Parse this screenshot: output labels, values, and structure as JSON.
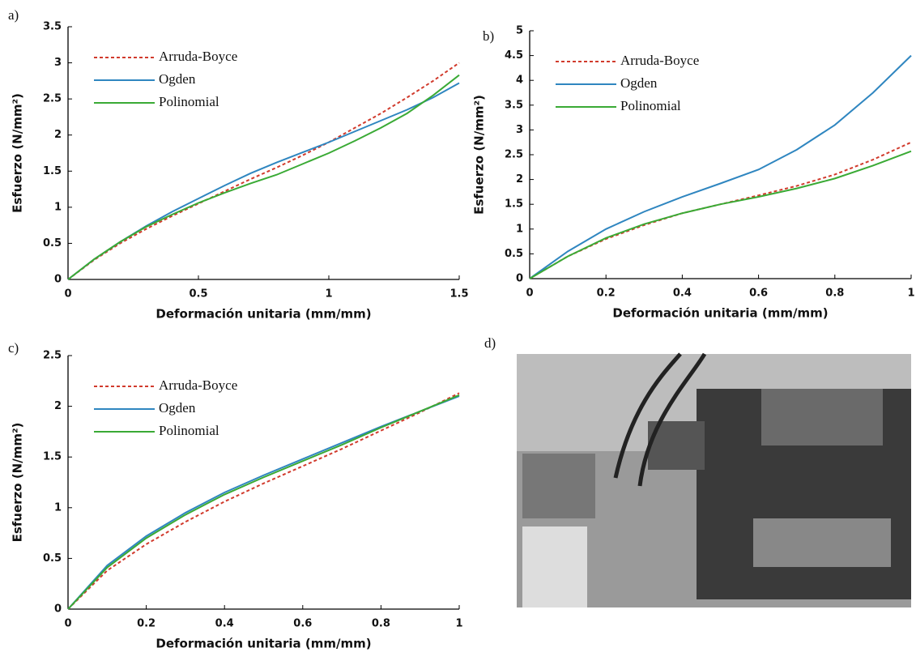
{
  "chart_data": [
    {
      "type": "line",
      "panel": "a)",
      "ylabel": "Esfuerzo (N/mm²)",
      "xlabel": "Deformación unitaria (mm/mm)",
      "xlim": [
        0,
        1.5
      ],
      "xticks": [
        0,
        0.5,
        1,
        1.5
      ],
      "ylim": [
        0,
        3.5
      ],
      "yticks": [
        0,
        0.5,
        1,
        1.5,
        2,
        2.5,
        3,
        3.5
      ],
      "legend": "upper left",
      "x": [
        0,
        0.1,
        0.2,
        0.3,
        0.4,
        0.5,
        0.6,
        0.7,
        0.8,
        0.9,
        1.0,
        1.1,
        1.2,
        1.3,
        1.4,
        1.5
      ],
      "series": [
        {
          "name": "Arruda-Boyce",
          "color": "#d13a2c",
          "style": "dotted",
          "values": [
            0,
            0.27,
            0.5,
            0.7,
            0.88,
            1.05,
            1.22,
            1.39,
            1.55,
            1.72,
            1.9,
            2.1,
            2.3,
            2.52,
            2.75,
            3.0
          ]
        },
        {
          "name": "Ogden",
          "color": "#2f86c0",
          "style": "solid",
          "values": [
            0,
            0.28,
            0.52,
            0.74,
            0.94,
            1.12,
            1.3,
            1.47,
            1.62,
            1.76,
            1.9,
            2.05,
            2.2,
            2.35,
            2.52,
            2.72
          ]
        },
        {
          "name": "Polinomial",
          "color": "#3aaa35",
          "style": "solid",
          "values": [
            0,
            0.28,
            0.52,
            0.73,
            0.9,
            1.06,
            1.2,
            1.33,
            1.45,
            1.6,
            1.75,
            1.92,
            2.1,
            2.3,
            2.55,
            2.83
          ]
        }
      ]
    },
    {
      "type": "line",
      "panel": "b)",
      "ylabel": "Esfuerzo (N/mm²)",
      "xlabel": "Deformación unitaria (mm/mm)",
      "xlim": [
        0,
        1
      ],
      "xticks": [
        0,
        0.2,
        0.4,
        0.6,
        0.8,
        1
      ],
      "ylim": [
        0,
        5
      ],
      "yticks": [
        0,
        0.5,
        1,
        1.5,
        2,
        2.5,
        3,
        3.5,
        4,
        4.5,
        5
      ],
      "legend": "upper left",
      "x": [
        0,
        0.1,
        0.2,
        0.3,
        0.4,
        0.5,
        0.6,
        0.7,
        0.8,
        0.9,
        1.0
      ],
      "series": [
        {
          "name": "Arruda-Boyce",
          "color": "#d13a2c",
          "style": "dotted",
          "values": [
            0,
            0.45,
            0.8,
            1.08,
            1.32,
            1.5,
            1.68,
            1.87,
            2.1,
            2.4,
            2.75
          ]
        },
        {
          "name": "Ogden",
          "color": "#2f86c0",
          "style": "solid",
          "values": [
            0,
            0.55,
            1.0,
            1.35,
            1.65,
            1.92,
            2.2,
            2.6,
            3.1,
            3.75,
            4.5
          ]
        },
        {
          "name": "Polinomial",
          "color": "#3aaa35",
          "style": "solid",
          "values": [
            0,
            0.45,
            0.82,
            1.1,
            1.32,
            1.5,
            1.65,
            1.82,
            2.02,
            2.28,
            2.57
          ]
        }
      ]
    },
    {
      "type": "line",
      "panel": "c)",
      "ylabel": "Esfuerzo (N/mm²)",
      "xlabel": "Deformación unitaria (mm/mm)",
      "xlim": [
        0,
        1
      ],
      "xticks": [
        0,
        0.2,
        0.4,
        0.6,
        0.8,
        1
      ],
      "ylim": [
        0,
        2.5
      ],
      "yticks": [
        0,
        0.5,
        1,
        1.5,
        2,
        2.5
      ],
      "legend": "upper left",
      "x": [
        0,
        0.1,
        0.2,
        0.3,
        0.4,
        0.5,
        0.6,
        0.7,
        0.8,
        0.9,
        1.0
      ],
      "series": [
        {
          "name": "Arruda-Boyce",
          "color": "#d13a2c",
          "style": "dotted",
          "values": [
            0,
            0.38,
            0.64,
            0.86,
            1.06,
            1.24,
            1.41,
            1.58,
            1.76,
            1.94,
            2.13
          ]
        },
        {
          "name": "Ogden",
          "color": "#2f86c0",
          "style": "solid",
          "values": [
            0,
            0.43,
            0.72,
            0.95,
            1.15,
            1.32,
            1.48,
            1.64,
            1.8,
            1.95,
            2.1
          ]
        },
        {
          "name": "Polinomial",
          "color": "#3aaa35",
          "style": "solid",
          "values": [
            0,
            0.41,
            0.7,
            0.93,
            1.13,
            1.3,
            1.46,
            1.62,
            1.79,
            1.95,
            2.11
          ]
        }
      ]
    }
  ],
  "photo_panel": {
    "label": "d)"
  }
}
